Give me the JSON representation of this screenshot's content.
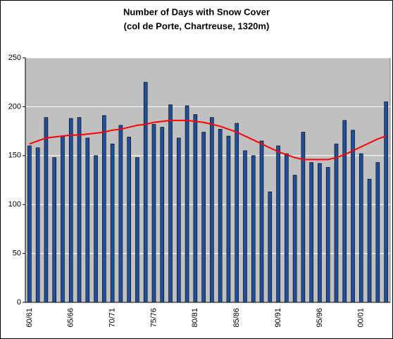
{
  "chart_data": {
    "type": "bar",
    "title": "Number of Days with Snow Cover",
    "subtitle": "(col de Porte, Chartreuse, 1320m)",
    "categories": [
      "60/61",
      null,
      null,
      null,
      null,
      "65/66",
      null,
      null,
      null,
      null,
      "70/71",
      null,
      null,
      null,
      null,
      "75/76",
      null,
      null,
      null,
      null,
      "80/81",
      null,
      null,
      null,
      null,
      "85/86",
      null,
      null,
      null,
      null,
      "90/91",
      null,
      null,
      null,
      null,
      "95/96",
      null,
      null,
      null,
      null,
      "00/01",
      null,
      null,
      null
    ],
    "values": [
      160,
      158,
      189,
      148,
      170,
      188,
      189,
      168,
      150,
      191,
      162,
      181,
      169,
      148,
      225,
      182,
      179,
      202,
      168,
      201,
      192,
      174,
      189,
      177,
      170,
      183,
      155,
      150,
      165,
      113,
      160,
      152,
      130,
      174,
      143,
      142,
      138,
      162,
      186,
      176,
      152,
      126,
      143,
      205
    ],
    "color": "#1f4f9c",
    "trend": {
      "color": "#ff0000",
      "values": [
        162,
        165,
        168,
        169,
        170,
        171,
        171,
        172,
        173,
        174,
        176,
        177,
        179,
        181,
        182,
        184,
        185,
        186,
        186,
        186,
        185,
        184,
        182,
        180,
        177,
        174,
        170,
        166,
        162,
        158,
        154,
        151,
        148,
        146,
        146,
        146,
        146,
        148,
        151,
        155,
        159,
        163,
        167,
        170
      ]
    },
    "ylim": [
      0,
      250
    ],
    "yticks": [
      0,
      50,
      100,
      150,
      200,
      250
    ],
    "grid": true
  }
}
